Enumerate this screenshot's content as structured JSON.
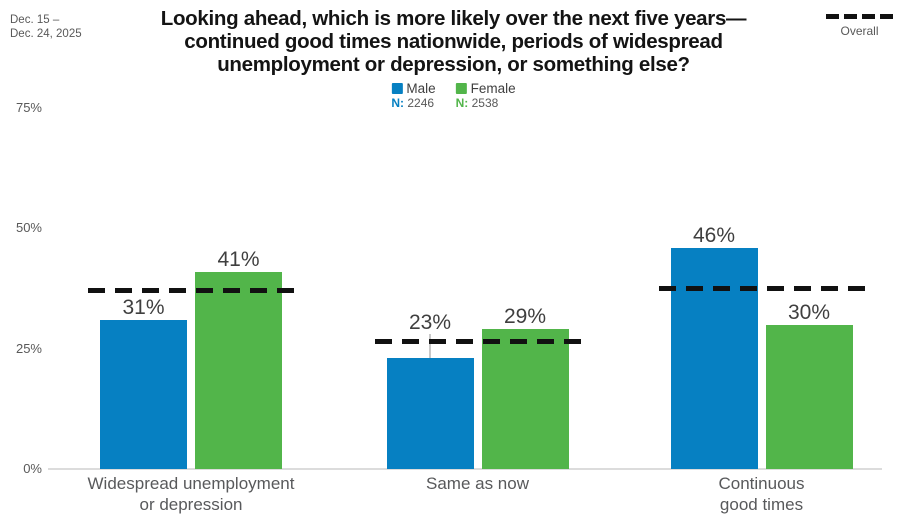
{
  "chart_data": {
    "type": "bar",
    "date_range": "Dec. 15 –\nDec. 24, 2025",
    "title": "Looking ahead, which is more likely over the next five years—\ncontinued good times nationwide, periods of widespread\nunemployment or depression, or something else?",
    "categories": [
      "Widespread unemployment\nor depression",
      "Same as now",
      "Continuous\ngood times"
    ],
    "series": [
      {
        "name": "Male",
        "n_prefix": "N:",
        "n": "2246",
        "color": "#0680c2",
        "values": [
          31,
          23,
          46
        ]
      },
      {
        "name": "Female",
        "n_prefix": "N:",
        "n": "2538",
        "color": "#52b54a",
        "values": [
          41,
          29,
          30
        ]
      }
    ],
    "overall_line": {
      "label": "Overall",
      "values": [
        37,
        26.5,
        37.5
      ],
      "style": "dashed",
      "color": "#111111"
    },
    "value_suffix": "%",
    "yaxis": {
      "ticks": [
        "0%",
        "25%",
        "50%",
        "75%"
      ],
      "tick_values": [
        0,
        25,
        50,
        75
      ],
      "ylim": [
        0,
        75
      ],
      "grid": false
    },
    "legend_position": "top"
  },
  "colors": {
    "male": "#0680c2",
    "female": "#52b54a",
    "overall_dash": "#111111",
    "title_text": "#141414",
    "value_text": "#3f3f3f",
    "axis_text": "#595959",
    "baseline": "#dcdcdc"
  }
}
